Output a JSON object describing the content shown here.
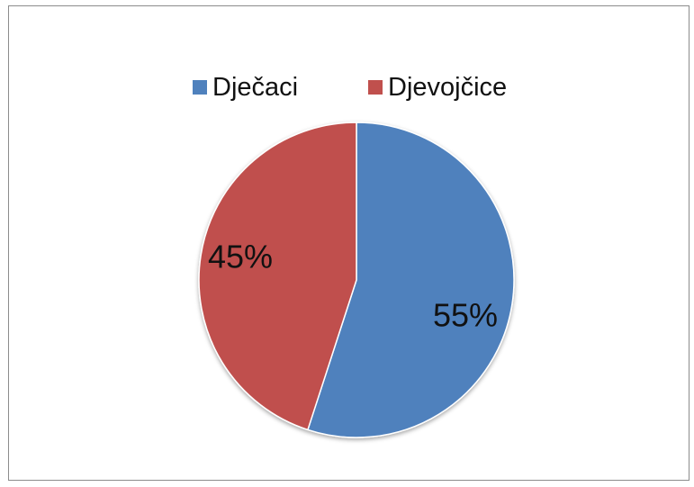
{
  "chart_data": {
    "type": "pie",
    "categories": [
      "Dječaci",
      "Djevojčice"
    ],
    "values": [
      55,
      45
    ],
    "data_labels": [
      "55%",
      "45%"
    ],
    "colors": [
      "#4f81bd",
      "#c0504d"
    ],
    "legend_position": "top",
    "start_angle": "12 o'clock",
    "direction": "clockwise"
  }
}
